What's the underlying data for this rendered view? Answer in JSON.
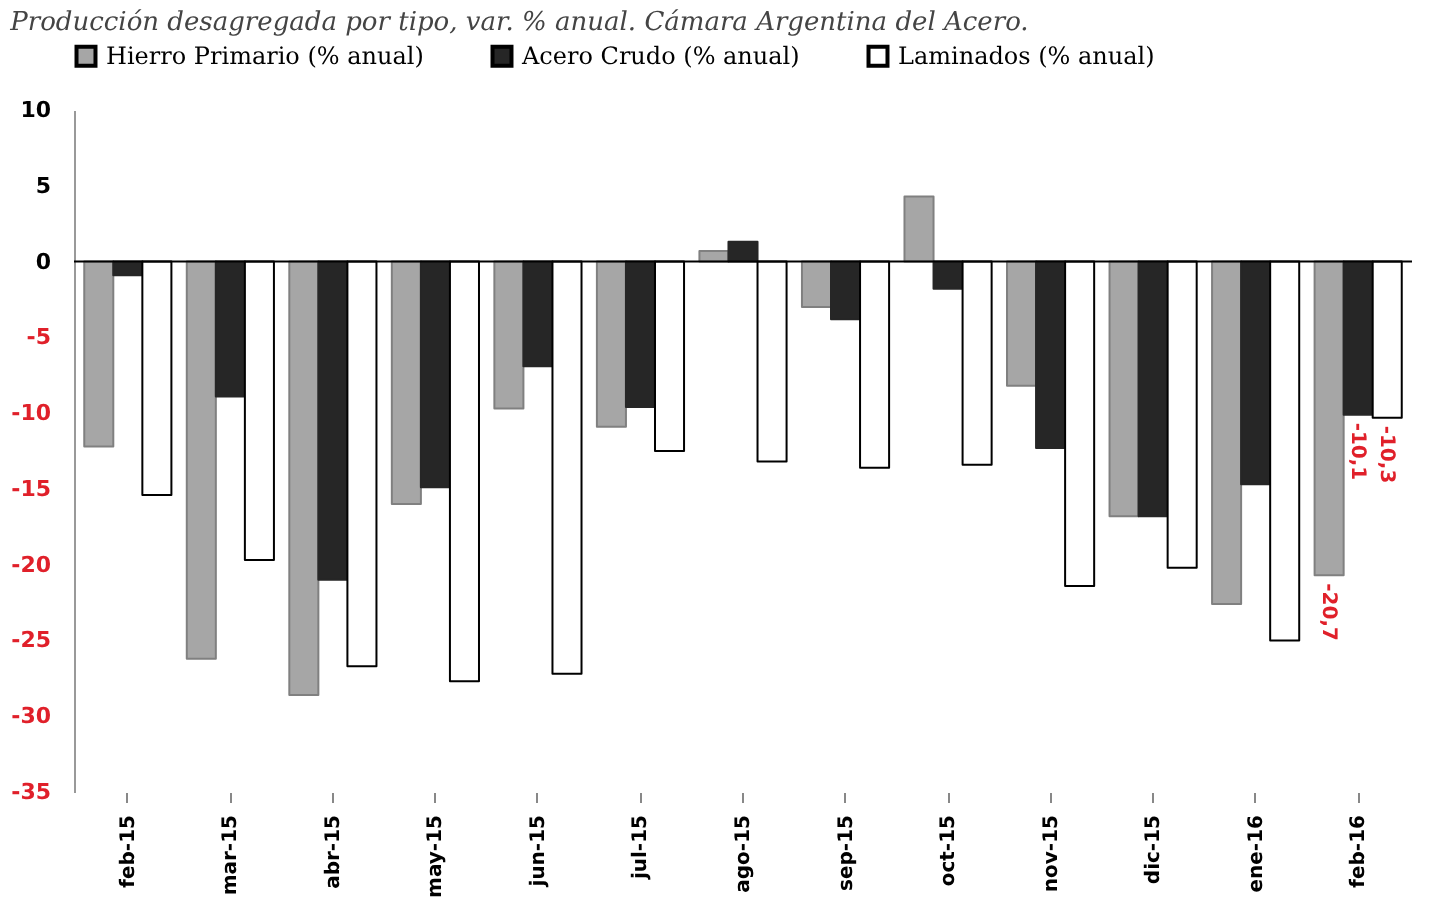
{
  "chart_data": {
    "type": "bar",
    "title": "Producción desagregada por tipo, var. % anual. Cámara Argentina del Acero.",
    "categories": [
      "feb-15",
      "mar-15",
      "abr-15",
      "may-15",
      "jun-15",
      "jul-15",
      "ago-15",
      "sep-15",
      "oct-15",
      "nov-15",
      "dic-15",
      "ene-16",
      "feb-16"
    ],
    "series": [
      {
        "name": "Hierro Primario (% anual)",
        "color": "#a6a6a6",
        "values": [
          -12.2,
          -26.2,
          -28.6,
          -16.0,
          -9.7,
          -10.9,
          0.7,
          -3.0,
          4.3,
          -8.2,
          -16.8,
          -22.6,
          -20.7
        ],
        "value_labels": [
          null,
          null,
          null,
          null,
          null,
          null,
          null,
          null,
          null,
          null,
          null,
          null,
          "-20,7"
        ]
      },
      {
        "name": "Acero Crudo (% anual)",
        "color": "#262626",
        "values": [
          -0.9,
          -8.9,
          -21.0,
          -14.9,
          -6.9,
          -9.6,
          1.3,
          -3.8,
          -1.8,
          -12.3,
          -16.8,
          -14.7,
          -10.1
        ],
        "value_labels": [
          null,
          null,
          null,
          null,
          null,
          null,
          null,
          null,
          null,
          null,
          null,
          null,
          "-10,1"
        ]
      },
      {
        "name": "Laminados (% anual)",
        "color": "#ffffff",
        "values": [
          -15.4,
          -19.7,
          -26.7,
          -27.7,
          -27.2,
          -12.5,
          -13.2,
          -13.6,
          -13.4,
          -21.4,
          -20.2,
          -25.0,
          -10.3
        ],
        "value_labels": [
          null,
          null,
          null,
          null,
          null,
          null,
          null,
          null,
          null,
          null,
          null,
          null,
          "-10,3"
        ]
      }
    ],
    "ylim": [
      -35,
      10
    ],
    "yticks": [
      10,
      5,
      0,
      -5,
      -10,
      -15,
      -20,
      -25,
      -30,
      -35
    ],
    "legend": "top"
  }
}
